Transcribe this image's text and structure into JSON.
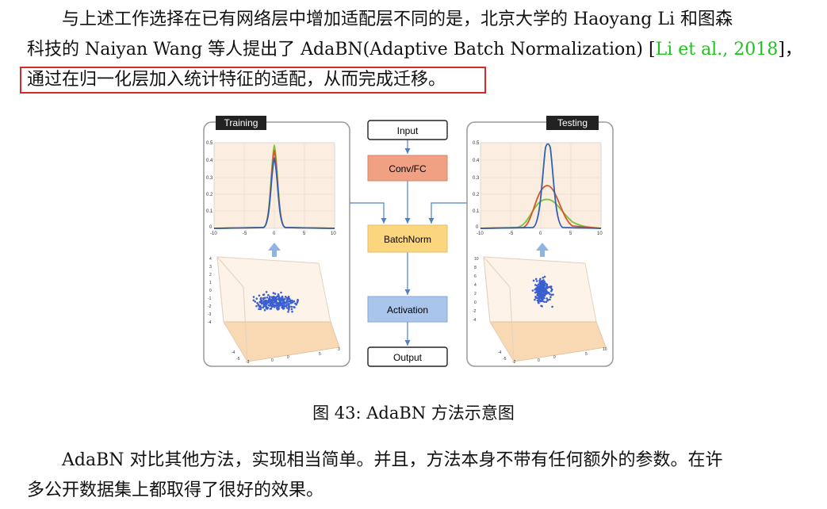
{
  "paragraph1": {
    "line1": "与上述工作选择在已有网络层中增加适配层不同的是，北京大学的 Haoyang Li 和图森",
    "line2_a": "科技的 Naiyan Wang 等人提出了 AdaBN(Adaptive Batch Normalization) ",
    "line2_bracket_open": "[",
    "citation": "Li et al., 2018",
    "line2_bracket_close": "]，",
    "highlighted": "通过在归一化层加入统计特征的适配，从而完成迁移。"
  },
  "figure": {
    "caption": "图 43: AdaBN 方法示意图",
    "training_label": "Training",
    "testing_label": "Testing",
    "flow": [
      "Input",
      "Conv/FC",
      "BatchNorm",
      "Activation",
      "Output"
    ],
    "colors": {
      "highlight_border": "#d42a2a",
      "citation": "#1ec21e",
      "conv": "#f0a184",
      "batchnorm": "#fbd67f",
      "activation": "#a9c5eb"
    },
    "left_plot": {
      "y_ticks": [
        "0.5",
        "0.4",
        "0.3",
        "0.2",
        "0.1",
        "0"
      ],
      "x_ticks": [
        "-10",
        "-5",
        "0",
        "5",
        "10"
      ],
      "z_ticks": [
        "4",
        "3",
        "2",
        "1",
        "0",
        "-1",
        "-2",
        "-3",
        "-4"
      ],
      "base_ticks": [
        "-4",
        "-5",
        "-3",
        "0",
        "0",
        "5",
        "3"
      ]
    },
    "right_plot": {
      "y_ticks": [
        "0.5",
        "0.4",
        "0.3",
        "0.2",
        "0.1",
        "0"
      ],
      "x_ticks": [
        "-10",
        "-5",
        "0",
        "5",
        "10"
      ],
      "z_ticks": [
        "10",
        "8",
        "6",
        "4",
        "2",
        "0",
        "-2",
        "-4"
      ],
      "base_ticks": [
        "-4",
        "-5",
        "-2",
        "0",
        "0",
        "5",
        "10"
      ]
    }
  },
  "paragraph2": {
    "line1": "AdaBN 对比其他方法，实现相当简单。并且，方法本身不带有任何额外的参数。在许",
    "line2": "多公开数据集上都取得了很好的效果。"
  }
}
